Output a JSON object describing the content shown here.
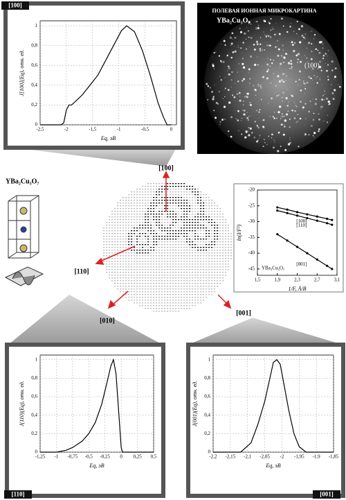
{
  "labels": {
    "photo_title": "ПОЛЕВАЯ ИОННАЯ МИКРОКАРТИНА",
    "photo_formula": "YBa₂Cu₃O₇",
    "photo_plane": "(100)",
    "formula": "YBa₂Cu₃O₇",
    "dir_100": "[100]",
    "dir_110": "[110]",
    "dir_010": "[010]",
    "dir_001": "[001]"
  },
  "chart_data": [
    {
      "type": "line",
      "title": "[100]",
      "xlabel": "Eq, эВ",
      "ylabel": "J[100](Eq), отн. ед.",
      "grid": true,
      "x": [
        -2.5,
        -2.1,
        -2.05,
        -2.0,
        -1.97,
        -1.95,
        -1.9,
        -1.7,
        -1.4,
        -1.1,
        -0.95,
        -0.85,
        -0.7,
        -0.55,
        -0.4,
        -0.25,
        -0.15,
        -0.08,
        0.0
      ],
      "series": [
        {
          "name": "[100]",
          "color": "#000000",
          "values": [
            0,
            0,
            0.02,
            0.15,
            0.18,
            0.2,
            0.2,
            0.3,
            0.5,
            0.8,
            0.95,
            1,
            0.94,
            0.75,
            0.5,
            0.22,
            0.08,
            0,
            0
          ]
        }
      ],
      "xlim": [
        -2.5,
        0.1
      ],
      "ylim": [
        0,
        1.05
      ],
      "xticks": [
        {
          "value": -2.5,
          "label": "-2,5"
        },
        {
          "value": -2,
          "label": "-2"
        },
        {
          "value": -1.5,
          "label": "-1,5"
        },
        {
          "value": -1,
          "label": "-1"
        },
        {
          "value": -0.5,
          "label": "-0,5"
        },
        {
          "value": 0,
          "label": "0"
        }
      ],
      "yticks": [
        0,
        {
          "value": 0.2,
          "label": "0,2"
        },
        {
          "value": 0.4,
          "label": "0,4"
        },
        {
          "value": 0.6,
          "label": "0,6"
        },
        {
          "value": 0.8,
          "label": "0,8"
        },
        1
      ]
    },
    {
      "type": "line",
      "title": "[110]",
      "xlabel": "Eq, эВ",
      "ylabel": "J(110)(Eq), отн. ед.",
      "grid": true,
      "x": [
        -1.25,
        -1.0,
        -0.85,
        -0.75,
        -0.6,
        -0.5,
        -0.4,
        -0.3,
        -0.22,
        -0.16,
        -0.12,
        -0.08,
        -0.04,
        0.0,
        0.02,
        0.5
      ],
      "series": [
        {
          "name": "[110]",
          "color": "#000000",
          "values": [
            0,
            0,
            0.02,
            0.05,
            0.12,
            0.2,
            0.32,
            0.52,
            0.75,
            0.93,
            1,
            0.85,
            0.45,
            0.05,
            0,
            0
          ]
        }
      ],
      "xlim": [
        -1.25,
        0.5
      ],
      "ylim": [
        0,
        1.05
      ],
      "xticks": [
        {
          "value": -1.25,
          "label": "-1,25"
        },
        {
          "value": -1,
          "label": "-1"
        },
        {
          "value": -0.75,
          "label": "-0,75"
        },
        {
          "value": -0.5,
          "label": "-0,5"
        },
        {
          "value": -0.25,
          "label": "-0,25"
        },
        0,
        {
          "value": 0.25,
          "label": "0,25"
        },
        {
          "value": 0.5,
          "label": "0,5"
        }
      ],
      "yticks": [
        0,
        {
          "value": 0.2,
          "label": "0,2"
        },
        {
          "value": 0.4,
          "label": "0,4"
        },
        {
          "value": 0.6,
          "label": "0,6"
        },
        {
          "value": 0.8,
          "label": "0,8"
        },
        1
      ]
    },
    {
      "type": "line",
      "title": "[001]",
      "xlabel": "Eq, эВ",
      "ylabel": "J(001)(Eq), отн. ед.",
      "grid": true,
      "x": [
        -2.2,
        -2.12,
        -2.09,
        -2.07,
        -2.05,
        -2.035,
        -2.025,
        -2.015,
        -2.005,
        -1.995,
        -1.98,
        -1.965,
        -1.95,
        -1.93,
        -1.85
      ],
      "series": [
        {
          "name": "[001]",
          "color": "#000000",
          "values": [
            0,
            0,
            0.1,
            0.3,
            0.55,
            0.8,
            0.97,
            1,
            0.95,
            0.75,
            0.45,
            0.2,
            0.06,
            0,
            0
          ]
        }
      ],
      "xlim": [
        -2.2,
        -1.85
      ],
      "ylim": [
        0,
        1.05
      ],
      "xticks": [
        {
          "value": -2.2,
          "label": "-2,2"
        },
        {
          "value": -2.15,
          "label": "-2,15"
        },
        {
          "value": -2.1,
          "label": "-2,1"
        },
        {
          "value": -2.05,
          "label": "-2,05"
        },
        {
          "value": -2,
          "label": "-2"
        },
        {
          "value": -1.95,
          "label": "-1,95"
        },
        {
          "value": -1.9,
          "label": "-1,9"
        },
        {
          "value": -1.85,
          "label": "-1,85"
        }
      ],
      "yticks": [
        0,
        {
          "value": 0.2,
          "label": "0,2"
        },
        {
          "value": 0.4,
          "label": "0,4"
        },
        {
          "value": 0.6,
          "label": "0,6"
        },
        {
          "value": 0.8,
          "label": "0,8"
        },
        1
      ]
    },
    {
      "type": "scatter",
      "xlabel": "1/F, Å/В",
      "ylabel": "ln(I/F²)",
      "grid": false,
      "note": "YBa₂Cu₃O₇",
      "series": [
        {
          "name": "[100]",
          "color": "#000000",
          "x": [
            1.9,
            2.1,
            2.3,
            2.5,
            2.7,
            2.9,
            3.0
          ],
          "values": [
            -25.5,
            -26.2,
            -27,
            -27.7,
            -28.4,
            -29.1,
            -29.5
          ]
        },
        {
          "name": "[110]",
          "color": "#000000",
          "x": [
            1.9,
            2.1,
            2.3,
            2.5,
            2.7,
            2.9,
            3.0
          ],
          "values": [
            -26.5,
            -27.3,
            -28.1,
            -28.9,
            -29.7,
            -30.5,
            -31
          ]
        },
        {
          "name": "[001]",
          "color": "#000000",
          "x": [
            1.9,
            2.1,
            2.3,
            2.5,
            2.7,
            2.9,
            3.0
          ],
          "values": [
            -34,
            -36,
            -38,
            -40,
            -42,
            -44,
            -45
          ]
        }
      ],
      "xlim": [
        1.5,
        3.1
      ],
      "ylim": [
        -47,
        -20
      ],
      "xticks": [
        {
          "value": 1.5,
          "label": "1,5"
        },
        {
          "value": 1.9,
          "label": "1,9"
        },
        {
          "value": 2.3,
          "label": "2,3"
        },
        {
          "value": 2.7,
          "label": "2,7"
        },
        {
          "value": 3.1,
          "label": "3,1"
        }
      ],
      "yticks": [
        -20,
        -25,
        -30,
        -35,
        -40,
        -45
      ]
    }
  ]
}
